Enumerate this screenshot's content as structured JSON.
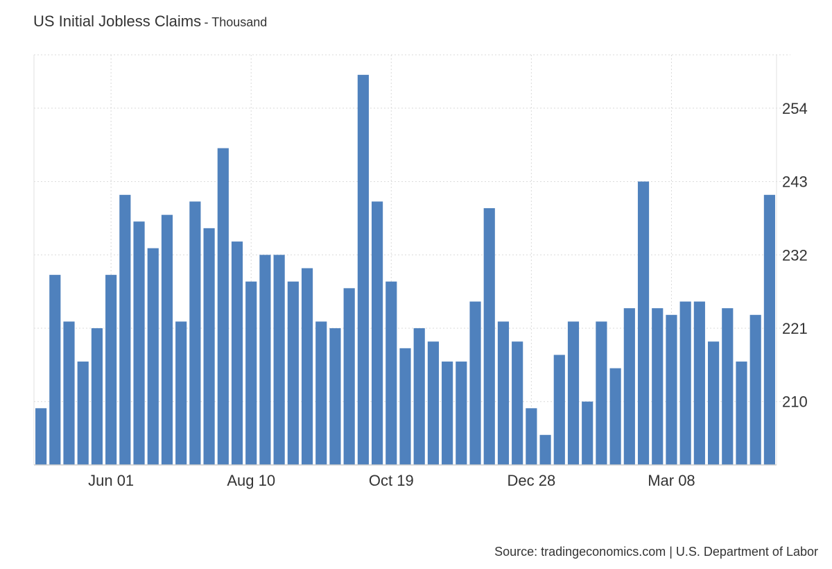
{
  "chart_data": {
    "type": "bar",
    "title": "US Initial Jobless Claims",
    "subtitle": "- Thousand",
    "source": "Source: tradingeconomics.com | U.S. Department of Labor",
    "color": "#4f81bd",
    "ylim": [
      200.5,
      262
    ],
    "yticks": [
      210,
      221,
      232,
      243,
      254
    ],
    "xtick_labels": [
      {
        "label": "Jun 01",
        "index": 5
      },
      {
        "label": "Aug 10",
        "index": 15
      },
      {
        "label": "Oct 19",
        "index": 25
      },
      {
        "label": "Dec 28",
        "index": 35
      },
      {
        "label": "Mar 08",
        "index": 45
      }
    ],
    "grid": true,
    "values": [
      209,
      229,
      222,
      216,
      221,
      229,
      241,
      237,
      233,
      238,
      222,
      240,
      236,
      248,
      234,
      228,
      232,
      232,
      228,
      230,
      222,
      221,
      227,
      259,
      240,
      228,
      218,
      221,
      219,
      216,
      216,
      225,
      239,
      222,
      219,
      209,
      205,
      217,
      222,
      210,
      222,
      215,
      224,
      243,
      224,
      223,
      225,
      225,
      219,
      224,
      216,
      223,
      241
    ]
  }
}
